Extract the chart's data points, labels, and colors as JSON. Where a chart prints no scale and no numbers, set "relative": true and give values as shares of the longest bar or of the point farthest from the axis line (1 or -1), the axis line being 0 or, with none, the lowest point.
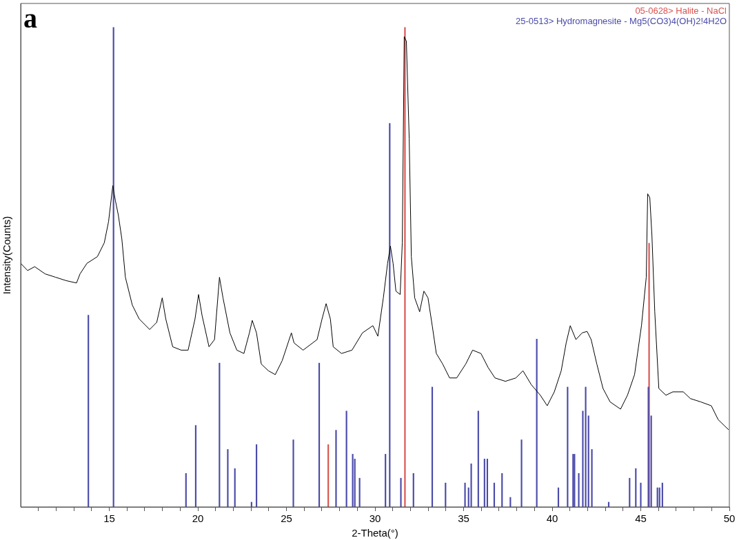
{
  "chart_data": {
    "type": "line",
    "title": "a",
    "xlabel": "2-Theta(°)",
    "ylabel": "Intensity(Counts)",
    "relative": true,
    "legend": "top right",
    "marker": "none",
    "line_style": "solid",
    "grid": false,
    "xlim": [
      10,
      50
    ],
    "xticks": [
      {
        "value": 11,
        "label": null
      },
      {
        "value": 12,
        "label": null
      },
      {
        "value": 13,
        "label": null
      },
      {
        "value": 14,
        "label": null
      },
      15,
      {
        "value": 16,
        "label": null
      },
      {
        "value": 17,
        "label": null
      },
      {
        "value": 18,
        "label": null
      },
      {
        "value": 19,
        "label": null
      },
      20,
      {
        "value": 21,
        "label": null
      },
      {
        "value": 22,
        "label": null
      },
      {
        "value": 23,
        "label": null
      },
      {
        "value": 24,
        "label": null
      },
      25,
      {
        "value": 26,
        "label": null
      },
      {
        "value": 27,
        "label": null
      },
      {
        "value": 28,
        "label": null
      },
      {
        "value": 29,
        "label": null
      },
      30,
      {
        "value": 31,
        "label": null
      },
      {
        "value": 32,
        "label": null
      },
      {
        "value": 33,
        "label": null
      },
      {
        "value": 34,
        "label": null
      },
      35,
      {
        "value": 36,
        "label": null
      },
      {
        "value": 37,
        "label": null
      },
      {
        "value": 38,
        "label": null
      },
      {
        "value": 39,
        "label": null
      },
      40,
      {
        "value": 41,
        "label": null
      },
      {
        "value": 42,
        "label": null
      },
      {
        "value": 43,
        "label": null
      },
      {
        "value": 44,
        "label": null
      },
      45,
      {
        "value": 46,
        "label": null
      },
      {
        "value": 47,
        "label": null
      },
      {
        "value": 48,
        "label": null
      },
      {
        "value": 49,
        "label": null
      },
      50
    ],
    "series": [
      {
        "color": "#000000",
        "x": [
          10,
          10.39,
          10.79,
          11.38,
          11.97,
          12.56,
          13.15,
          13.35,
          13.74,
          14.33,
          14.72,
          14.96,
          15.2,
          15.35,
          15.51,
          15.71,
          15.91,
          16.3,
          16.69,
          17.28,
          17.68,
          17.99,
          18.19,
          18.58,
          19.06,
          19.45,
          19.84,
          20.04,
          20.24,
          20.63,
          20.94,
          21.22,
          21.42,
          21.81,
          22.2,
          22.6,
          22.91,
          23.07,
          23.31,
          23.58,
          23.98,
          24.37,
          24.76,
          25.28,
          25.43,
          25.94,
          26.73,
          27.01,
          27.24,
          27.48,
          27.64,
          28.11,
          28.7,
          29.29,
          29.88,
          30.16,
          30.47,
          30.71,
          30.87,
          31.02,
          31.18,
          31.42,
          31.54,
          31.65,
          31.77,
          31.93,
          32.05,
          32.24,
          32.52,
          32.76,
          32.99,
          33.23,
          33.46,
          33.82,
          34.21,
          34.61,
          35.12,
          35.51,
          35.98,
          36.38,
          36.77,
          37.36,
          37.95,
          38.35,
          38.82,
          39.33,
          39.72,
          40.12,
          40.51,
          40.79,
          41.02,
          41.34,
          41.69,
          41.97,
          42.2,
          42.52,
          42.87,
          43.27,
          43.86,
          44.25,
          44.65,
          45.04,
          45.31,
          45.39,
          45.51,
          45.63,
          45.79,
          46.02,
          46.42,
          46.81,
          47.4,
          47.8,
          48.39,
          48.98,
          49.37,
          49.76,
          49.96
        ],
        "values": [
          0.508,
          0.493,
          0.501,
          0.486,
          0.479,
          0.472,
          0.467,
          0.486,
          0.508,
          0.522,
          0.551,
          0.595,
          0.67,
          0.638,
          0.609,
          0.559,
          0.479,
          0.421,
          0.392,
          0.37,
          0.385,
          0.436,
          0.392,
          0.334,
          0.327,
          0.327,
          0.392,
          0.443,
          0.399,
          0.334,
          0.349,
          0.479,
          0.436,
          0.363,
          0.327,
          0.32,
          0.363,
          0.389,
          0.363,
          0.298,
          0.284,
          0.276,
          0.305,
          0.363,
          0.342,
          0.327,
          0.349,
          0.392,
          0.424,
          0.392,
          0.334,
          0.32,
          0.327,
          0.363,
          0.378,
          0.356,
          0.436,
          0.508,
          0.544,
          0.508,
          0.45,
          0.443,
          0.551,
          0.981,
          0.971,
          0.768,
          0.522,
          0.436,
          0.407,
          0.45,
          0.436,
          0.378,
          0.32,
          0.298,
          0.269,
          0.269,
          0.298,
          0.327,
          0.32,
          0.291,
          0.269,
          0.262,
          0.269,
          0.284,
          0.255,
          0.233,
          0.211,
          0.24,
          0.284,
          0.342,
          0.378,
          0.349,
          0.363,
          0.366,
          0.349,
          0.298,
          0.247,
          0.219,
          0.204,
          0.233,
          0.276,
          0.378,
          0.479,
          0.653,
          0.645,
          0.566,
          0.407,
          0.247,
          0.233,
          0.24,
          0.24,
          0.226,
          0.219,
          0.211,
          0.182,
          0.168,
          0.161
        ]
      },
      {
        "type": "bar",
        "name": "05-0628> Halite - NaCl",
        "color": "#d9534f",
        "x": [
          27.36,
          31.69,
          45.47
        ],
        "values": [
          0.13,
          1.0,
          0.55
        ]
      },
      {
        "type": "bar",
        "name": "25-0513> Hydromagnesite - Mg5(CO3)4(OH)2!4H2O",
        "color": "#4a4aaa",
        "x": [
          13.82,
          15.24,
          19.33,
          19.88,
          21.22,
          21.69,
          22.09,
          23.03,
          23.31,
          25.39,
          26.85,
          27.8,
          28.39,
          28.74,
          28.86,
          29.13,
          30.59,
          30.83,
          31.46,
          32.17,
          33.23,
          33.98,
          35.08,
          35.28,
          35.43,
          35.83,
          36.18,
          36.34,
          36.73,
          37.17,
          37.64,
          38.27,
          39.13,
          40.35,
          40.87,
          41.18,
          41.26,
          41.5,
          41.73,
          41.89,
          42.05,
          42.24,
          43.19,
          44.37,
          44.72,
          45.0,
          45.43,
          45.59,
          45.94,
          46.06,
          46.22
        ],
        "values": [
          0.4,
          1.0,
          0.07,
          0.17,
          0.3,
          0.12,
          0.08,
          0.01,
          0.13,
          0.14,
          0.3,
          0.16,
          0.2,
          0.11,
          0.1,
          0.06,
          0.11,
          0.8,
          0.06,
          0.07,
          0.25,
          0.05,
          0.05,
          0.04,
          0.09,
          0.2,
          0.1,
          0.1,
          0.05,
          0.07,
          0.02,
          0.14,
          0.35,
          0.04,
          0.25,
          0.11,
          0.11,
          0.07,
          0.2,
          0.25,
          0.19,
          0.12,
          0.01,
          0.06,
          0.08,
          0.05,
          0.25,
          0.19,
          0.04,
          0.04,
          0.05
        ]
      }
    ]
  }
}
